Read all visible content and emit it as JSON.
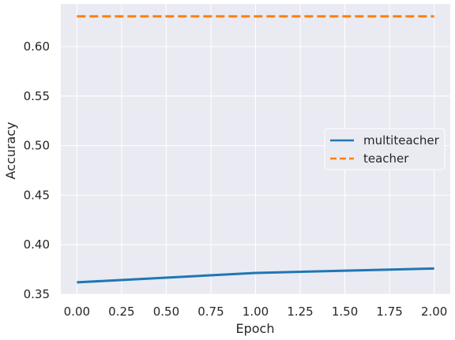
{
  "chart_data": {
    "type": "line",
    "xlabel": "Epoch",
    "ylabel": "Accuracy",
    "xlim": [
      -0.09,
      2.09
    ],
    "ylim": [
      0.35,
      0.643
    ],
    "x_ticks": [
      "0.00",
      "0.25",
      "0.50",
      "0.75",
      "1.00",
      "1.25",
      "1.50",
      "1.75",
      "2.00"
    ],
    "y_ticks": [
      "0.35",
      "0.40",
      "0.45",
      "0.50",
      "0.55",
      "0.60"
    ],
    "grid": true,
    "legend_position": "center-right",
    "series": [
      {
        "name": "multiteacher",
        "x": [
          0,
          1,
          2
        ],
        "y": [
          0.362,
          0.3715,
          0.376
        ],
        "color": "#1f77b4",
        "linestyle": "solid"
      },
      {
        "name": "teacher",
        "x": [
          0,
          1,
          2
        ],
        "y": [
          0.6305,
          0.6305,
          0.6305
        ],
        "color": "#ff7f0e",
        "linestyle": "dashed"
      }
    ],
    "background_color": "#eaeaf2",
    "grid_color": "#ffffff"
  }
}
